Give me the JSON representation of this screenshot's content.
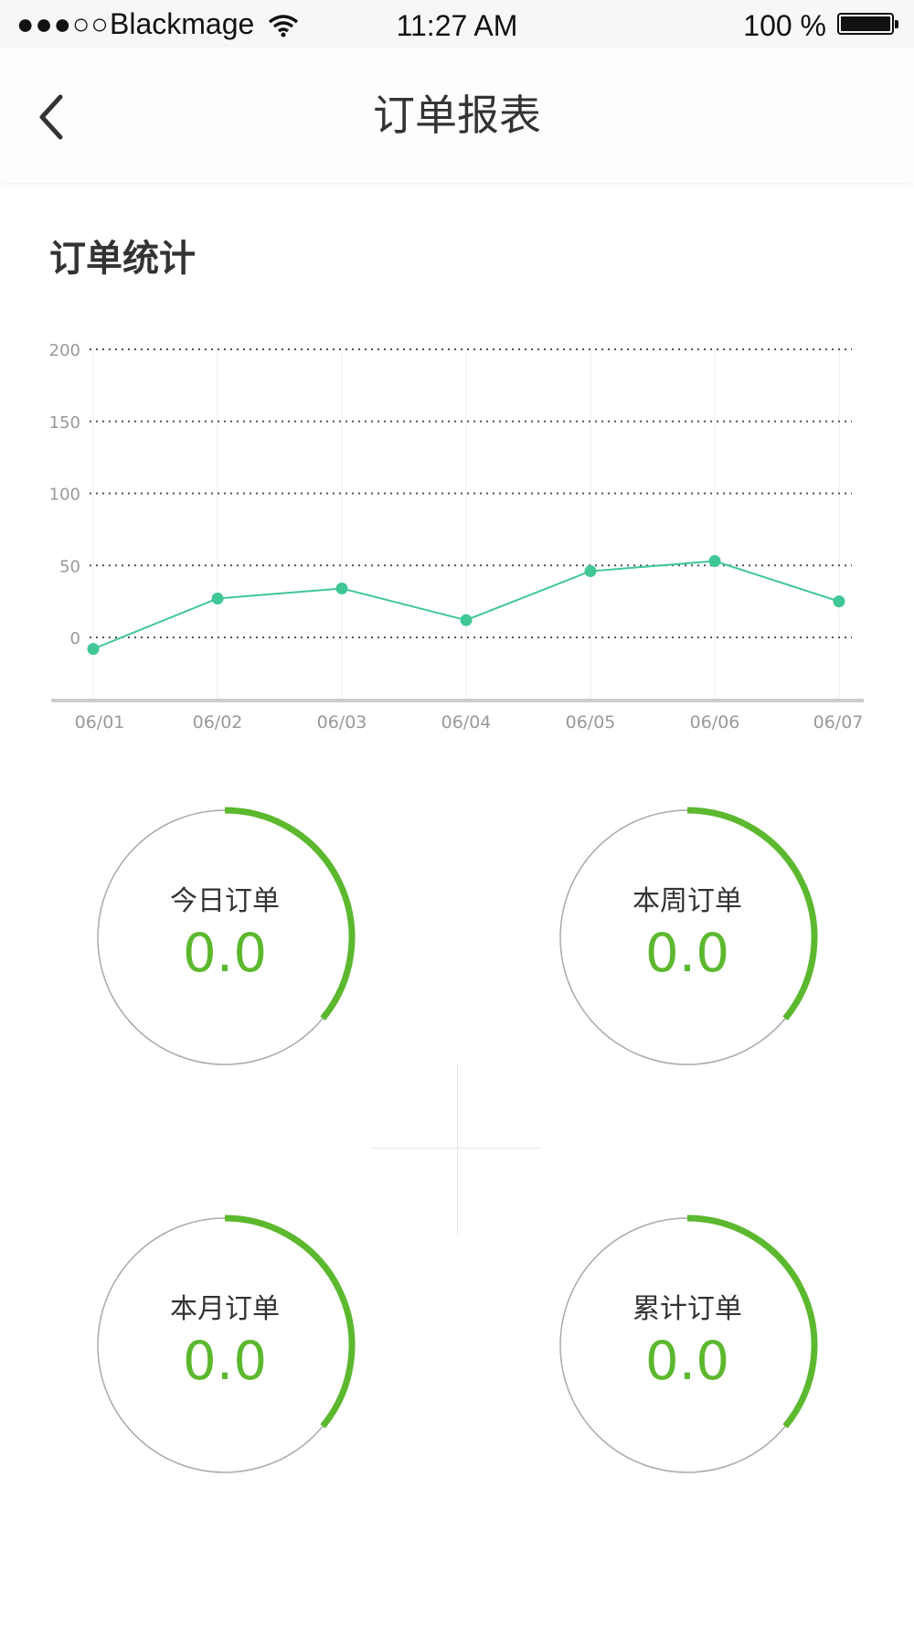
{
  "status_bar": {
    "signal": "●●●○○",
    "carrier": "Blackmage",
    "time": "11:27 AM",
    "battery": "100 %"
  },
  "nav": {
    "title": "订单报表",
    "back_icon": "chevron-left-icon"
  },
  "section": {
    "title": "订单统计"
  },
  "chart_data": {
    "type": "line",
    "categories": [
      "06/01",
      "06/02",
      "06/03",
      "06/04",
      "06/05",
      "06/06",
      "06/07"
    ],
    "series": [
      {
        "values": [
          -8,
          27,
          34,
          12,
          46,
          53,
          25
        ],
        "color": "#3fc795"
      }
    ],
    "y_ticks": [
      0,
      50,
      100,
      150,
      200
    ],
    "ylim": [
      -40,
      200
    ],
    "grid": "dotted horizontal, solid vertical"
  },
  "gauges": [
    {
      "label": "今日订单",
      "value": "0.0",
      "progress": 0.36
    },
    {
      "label": "本周订单",
      "value": "0.0",
      "progress": 0.36
    },
    {
      "label": "本月订单",
      "value": "0.0",
      "progress": 0.36
    },
    {
      "label": "累计订单",
      "value": "0.0",
      "progress": 0.36
    }
  ],
  "colors": {
    "accent": "#5cb82e",
    "line": "#3fc795",
    "ring": "#aaaaaa"
  }
}
